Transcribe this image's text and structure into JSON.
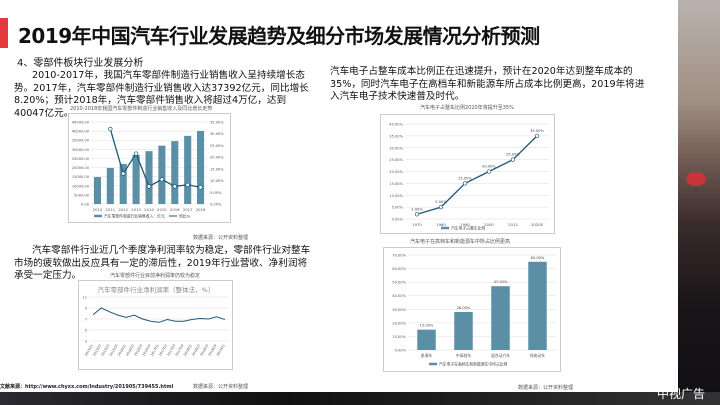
{
  "title": "2019年中国汽车行业发展趋势及细分市场发展情况分析预测",
  "left": {
    "heading": "4、零部件板块行业发展分析",
    "para1": "2010-2017年，我国汽车零部件制造行业销售收入呈持续增长态势。2017年，汽车零部件制造行业销售收入达37392亿元，同比增长8.20%；预计2018年，汽车零部件销售收入将超过4万亿，达到40047亿元。",
    "source1": "数据来源：公开资料整理",
    "para2": "汽车零部件行业近几个季度净利润率较为稳定，零部件行业对整车市场的疲软做出反应具有一定的滞后性，2019年行业营收、净利润将承受一定压力。",
    "source2": "数据来源：公开资料整理",
    "ref": "文献来源：http://www.chyxx.com/industry/201905/739455.html"
  },
  "right": {
    "para1": "汽车电子占整车成本比例正在迅速提升，预计在2020年达到整车成本的35%，同时汽车电子在高档车和新能源车所占成本比例更高，2019年将进入汽车电子技术快速普及时代。",
    "source": "数据来源：公开资料整理"
  },
  "watermark": "中视广告",
  "colors": {
    "accent": "#e3393c",
    "bar": "#5b8fa5",
    "line": "#1f5a78"
  },
  "chart_data": [
    {
      "type": "bar",
      "title": "2010-2018年我国汽车零部件制造行业销售收入及同比增长走势",
      "categories": [
        "2010",
        "2011",
        "2012",
        "2013",
        "2014",
        "2015",
        "2016",
        "2017",
        "2018"
      ],
      "series": [
        {
          "name": "汽车零部件制造行业销售收入：亿元",
          "type": "bar",
          "values": [
            14800,
            19800,
            22000,
            27000,
            29000,
            32000,
            34500,
            37392,
            40047
          ]
        },
        {
          "name": "同比%",
          "type": "line",
          "axis": "right",
          "values": [
            null,
            32.0,
            13.0,
            21.5,
            7.5,
            10.5,
            7.5,
            8.2,
            7.1
          ]
        }
      ],
      "ylim": [
        0,
        45000
      ],
      "yticks": [
        "0.00",
        "5000.00",
        "10000.00",
        "15000.00",
        "20000.00",
        "25000.00",
        "30000.00",
        "35000.00",
        "40000.00",
        "45000.00"
      ],
      "y2lim": [
        0,
        35
      ],
      "y2ticks": [
        "0.00%",
        "5.00%",
        "10.00%",
        "15.00%",
        "20.00%",
        "25.00%",
        "30.00%",
        "35.00%"
      ]
    },
    {
      "type": "line",
      "title": "汽车电子占整车比例2020年将提升至35%",
      "categories": [
        "1970",
        "1980",
        "1990",
        "2000",
        "2012",
        "2020E"
      ],
      "series": [
        {
          "name": "汽车电子占整车比例",
          "values": [
            2,
            5,
            15,
            20,
            25,
            35
          ]
        }
      ],
      "labels": [
        "2.00%",
        "5.00%",
        "15.00%",
        "20.00%",
        "25.00%",
        "35.00%"
      ],
      "ylim": [
        0,
        40
      ],
      "yticks": [
        "0.00%",
        "5.00%",
        "10.00%",
        "15.00%",
        "20.00%",
        "25.00%",
        "30.00%",
        "35.00%",
        "40.00%"
      ]
    },
    {
      "type": "line",
      "title": "汽车零部件行业净利润率",
      "caption": "汽车零部件行业目前净利润率仍较为稳定",
      "inner_title": "汽车零部件行业净利润率（整体法，%）",
      "categories": [
        "2015Q1",
        "2015Q2",
        "2015Q3",
        "2015Q4",
        "2016Q1",
        "2016Q2",
        "2016Q3",
        "2016Q4",
        "2017Q1",
        "2017Q2",
        "2017Q3",
        "2017Q4",
        "2018Q1",
        "2018Q2",
        "2018Q3",
        "2018Q4",
        "2019Q1"
      ],
      "series": [
        {
          "name": "净利润率",
          "values": [
            7.8,
            9.0,
            8.3,
            7.7,
            7.3,
            7.7,
            7.0,
            6.6,
            6.4,
            6.9,
            6.6,
            6.6,
            6.9,
            7.1,
            7.0,
            7.4,
            6.9
          ]
        }
      ],
      "ylim": [
        3,
        11
      ],
      "yticks": [
        "3",
        "5",
        "7",
        "9",
        "11"
      ]
    },
    {
      "type": "bar",
      "title": "汽车电子在高档车和新能源车中所占比例更高",
      "categories": [
        "紧凑车",
        "中高档车",
        "混合动力车",
        "纯电动车"
      ],
      "series": [
        {
          "name": "汽车电子在高档车和新能源车中所占比例",
          "values": [
            15,
            28,
            47,
            65
          ]
        }
      ],
      "labels": [
        "15.00%",
        "28.00%",
        "47.00%",
        "65.00%"
      ],
      "ylim": [
        0,
        70
      ],
      "yticks": [
        "0.00%",
        "10.00%",
        "20.00%",
        "30.00%",
        "40.00%",
        "50.00%",
        "60.00%",
        "70.00%"
      ]
    }
  ]
}
